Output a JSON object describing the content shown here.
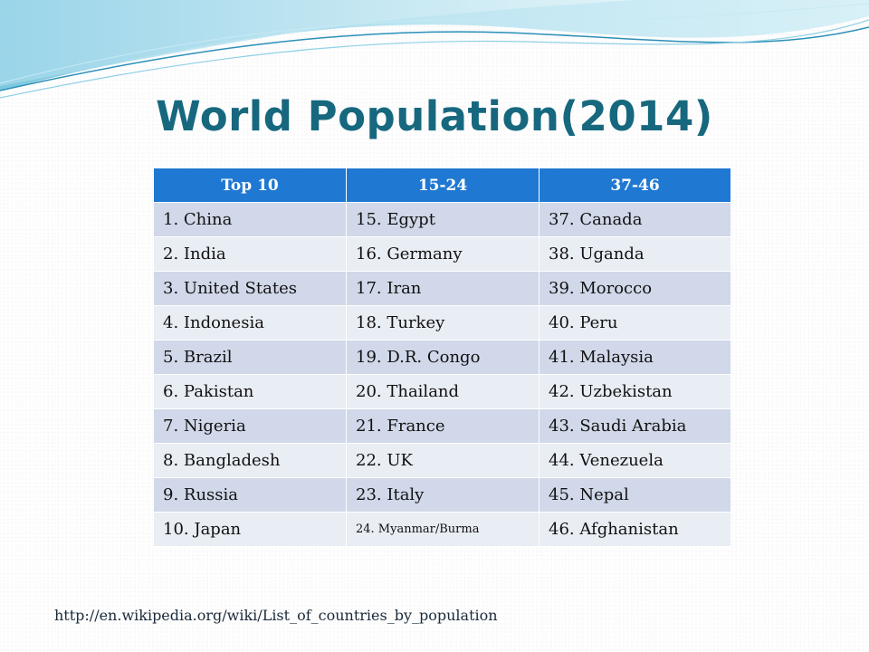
{
  "title": "World Population(2014)",
  "colors": {
    "title": "#17687f",
    "header_bg": "#1f78d2",
    "row_odd": "#d0d8e9",
    "row_even": "#e9edf4",
    "wave_light": "#bfe6f2",
    "wave_mid": "#8fd0e6",
    "wave_dark": "#2b8fb8"
  },
  "table": {
    "headers": [
      "Top 10",
      "15-24",
      "37-46"
    ],
    "rows": [
      [
        "1. China",
        "15. Egypt",
        "37. Canada"
      ],
      [
        "2. India",
        "16. Germany",
        "38. Uganda"
      ],
      [
        "3. United States",
        "17. Iran",
        "39. Morocco"
      ],
      [
        "4. Indonesia",
        "18. Turkey",
        "40. Peru"
      ],
      [
        "5. Brazil",
        "19. D.R. Congo",
        "41. Malaysia"
      ],
      [
        "6. Pakistan",
        "20. Thailand",
        "42. Uzbekistan"
      ],
      [
        "7. Nigeria",
        "21. France",
        "43. Saudi Arabia"
      ],
      [
        "8. Bangladesh",
        "22. UK",
        "44. Venezuela"
      ],
      [
        "9. Russia",
        "23. Italy",
        "45. Nepal"
      ],
      [
        "10. Japan",
        "24. Myanmar/Burma",
        "46. Afghanistan"
      ]
    ]
  },
  "source_link": "http://en.wikipedia.org/wiki/List_of_countries_by_population"
}
